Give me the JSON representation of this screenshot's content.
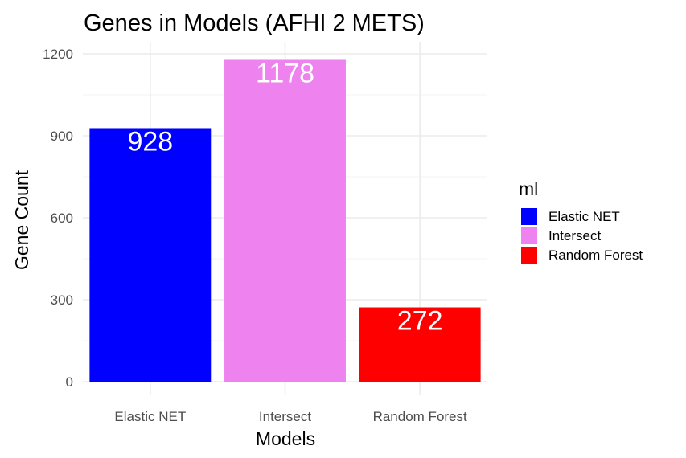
{
  "chart_data": {
    "type": "bar",
    "title": "Genes in Models (AFHI 2 METS)",
    "xlabel": "Models",
    "ylabel": "Gene Count",
    "categories": [
      "Elastic NET",
      "Intersect",
      "Random Forest"
    ],
    "values": [
      928,
      1178,
      272
    ],
    "data_labels": [
      "928",
      "1178",
      "272"
    ],
    "colors": [
      "#0000FF",
      "#EE82EE",
      "#FF0000"
    ],
    "ylim": [
      0,
      1200
    ],
    "yticks": [
      0,
      300,
      600,
      900,
      1200
    ],
    "ytick_labels": [
      "0",
      "300",
      "600",
      "900",
      "1200"
    ],
    "grid": true,
    "legend": {
      "title": "ml",
      "position": "right",
      "entries": [
        "Elastic NET",
        "Intersect",
        "Random Forest"
      ]
    }
  }
}
